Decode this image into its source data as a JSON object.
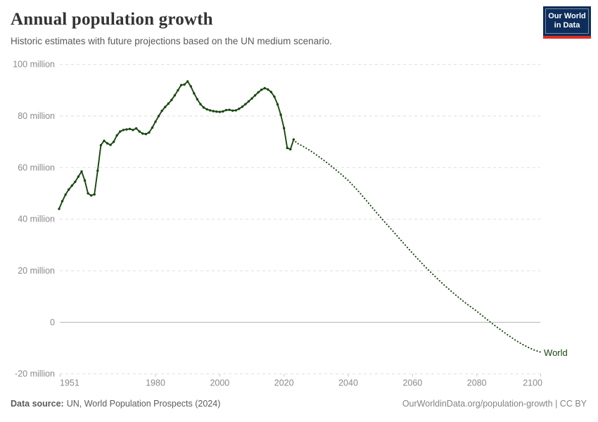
{
  "header": {
    "title": "Annual population growth",
    "subtitle": "Historic estimates with future projections based on the UN medium scenario."
  },
  "logo": {
    "line1": "Our World",
    "line2": "in Data",
    "bg_color": "#0d2d5a",
    "accent_color": "#dc3023"
  },
  "footer": {
    "source_label": "Data source:",
    "source_text": "UN, World Population Prospects (2024)",
    "credit": "OurWorldinData.org/population-growth | CC BY"
  },
  "chart_data": {
    "type": "line",
    "title": "Annual population growth",
    "entity_label": "World",
    "unit": "million",
    "grid": true,
    "legend_position": "end-of-line",
    "colors": {
      "line": "#18470f",
      "grid": "#dedede",
      "zero_line": "#b0b0b0",
      "axis_text": "#8b8b8b",
      "tick": "#c8c8c8"
    },
    "x_axis": {
      "range": [
        1950,
        2100
      ],
      "ticks": [
        1951,
        1980,
        2000,
        2020,
        2040,
        2060,
        2080,
        2100
      ]
    },
    "y_axis": {
      "range": [
        -20,
        100
      ],
      "ticks": [
        {
          "value": 100,
          "label": "100 million"
        },
        {
          "value": 80,
          "label": "80 million"
        },
        {
          "value": 60,
          "label": "60 million"
        },
        {
          "value": 40,
          "label": "40 million"
        },
        {
          "value": 20,
          "label": "20 million"
        },
        {
          "value": 0,
          "label": "0"
        },
        {
          "value": -20,
          "label": "-20 million"
        }
      ]
    },
    "series": [
      {
        "name": "World — historic estimates",
        "style": "solid",
        "markers": true,
        "start_year": 1950,
        "values": [
          44.0,
          47.0,
          49.5,
          51.5,
          53.0,
          54.5,
          56.5,
          58.5,
          55.0,
          50.0,
          49.2,
          49.6,
          58.8,
          68.7,
          70.4,
          69.4,
          68.8,
          70.0,
          72.5,
          74.0,
          74.6,
          74.8,
          75.0,
          74.6,
          75.2,
          74.0,
          73.2,
          73.0,
          73.6,
          75.5,
          77.8,
          80.0,
          82.0,
          83.5,
          84.8,
          86.2,
          88.0,
          90.0,
          92.0,
          92.2,
          93.4,
          91.5,
          88.8,
          86.5,
          84.6,
          83.3,
          82.6,
          82.2,
          81.9,
          81.7,
          81.6,
          81.8,
          82.3,
          82.4,
          82.1,
          82.2,
          82.8,
          83.6,
          84.6,
          85.7,
          86.8,
          88.0,
          89.2,
          90.2,
          90.8,
          90.3,
          89.3,
          87.5,
          84.5,
          80.5,
          75.3,
          67.6,
          67.1,
          70.9
        ]
      },
      {
        "name": "World — UN medium projection",
        "style": "dotted",
        "markers": false,
        "points": [
          [
            2023,
            70.9
          ],
          [
            2024,
            69.5
          ],
          [
            2026,
            68.2
          ],
          [
            2028,
            66.7
          ],
          [
            2030,
            65.0
          ],
          [
            2032,
            63.2
          ],
          [
            2034,
            61.3
          ],
          [
            2036,
            59.3
          ],
          [
            2038,
            57.2
          ],
          [
            2040,
            55.0
          ],
          [
            2042,
            52.4
          ],
          [
            2044,
            49.6
          ],
          [
            2046,
            46.7
          ],
          [
            2048,
            43.7
          ],
          [
            2050,
            40.8
          ],
          [
            2052,
            38.0
          ],
          [
            2054,
            35.2
          ],
          [
            2056,
            32.4
          ],
          [
            2058,
            29.6
          ],
          [
            2060,
            26.8
          ],
          [
            2062,
            24.1
          ],
          [
            2064,
            21.5
          ],
          [
            2066,
            19.0
          ],
          [
            2068,
            16.6
          ],
          [
            2070,
            14.3
          ],
          [
            2072,
            12.1
          ],
          [
            2074,
            10.0
          ],
          [
            2076,
            8.0
          ],
          [
            2078,
            6.1
          ],
          [
            2080,
            4.3
          ],
          [
            2082,
            2.3
          ],
          [
            2084,
            0.3
          ],
          [
            2086,
            -1.6
          ],
          [
            2088,
            -3.4
          ],
          [
            2090,
            -5.2
          ],
          [
            2092,
            -6.9
          ],
          [
            2094,
            -8.4
          ],
          [
            2096,
            -9.7
          ],
          [
            2098,
            -10.8
          ],
          [
            2100,
            -11.6
          ]
        ]
      }
    ]
  }
}
